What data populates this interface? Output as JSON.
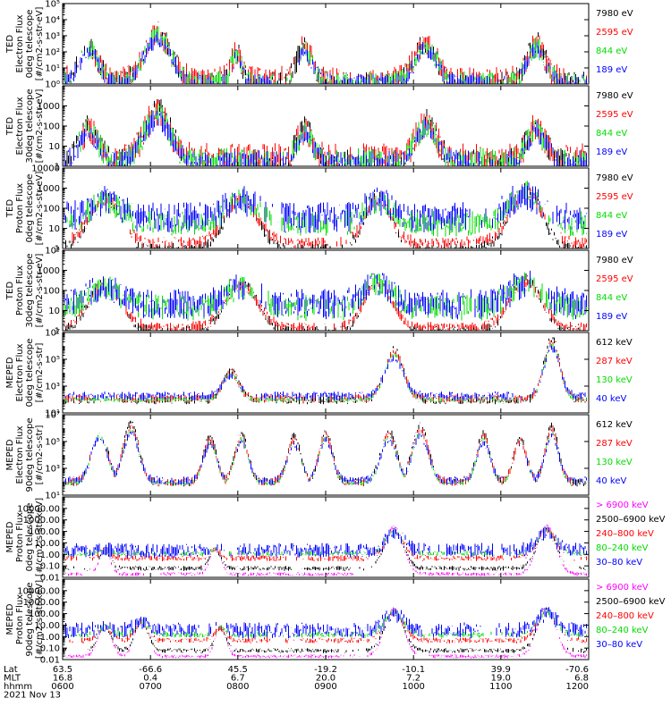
{
  "chart_data": [
    {
      "type": "line",
      "ylabel": [
        "TED",
        "Electron Flux",
        "0deg telescope",
        "[#/cm2-s-str-eV]"
      ],
      "yscale": "log",
      "ylim": [
        1,
        100000
      ],
      "yticks": [
        {
          "v": 1,
          "label": "10⁰"
        },
        {
          "v": 10,
          "label": "10¹"
        },
        {
          "v": 100,
          "label": "10²"
        },
        {
          "v": 1000,
          "label": "10³"
        },
        {
          "v": 10000,
          "label": "10⁴"
        },
        {
          "v": 100000,
          "label": "10⁵"
        }
      ],
      "series": [
        {
          "name": "7980 eV",
          "color": "#000000",
          "base": 0.1,
          "spread": 1.4
        },
        {
          "name": "2595 eV",
          "color": "#ff0000",
          "base": 0.3,
          "spread": 1.6
        },
        {
          "name": "844 eV",
          "color": "#00dd00",
          "base": 0.2,
          "spread": 1.2
        },
        {
          "name": "189 eV",
          "color": "#0000ff",
          "base": 0.15,
          "spread": 1.0
        }
      ],
      "passes": [
        {
          "c": 0.05,
          "w": 0.035,
          "peak": 2.5
        },
        {
          "c": 0.18,
          "w": 0.05,
          "peak": 3.4
        },
        {
          "c": 0.33,
          "w": 0.02,
          "peak": 2.0
        },
        {
          "c": 0.46,
          "w": 0.03,
          "peak": 2.4
        },
        {
          "c": 0.69,
          "w": 0.04,
          "peak": 2.7
        },
        {
          "c": 0.9,
          "w": 0.035,
          "peak": 2.6
        }
      ]
    },
    {
      "type": "line",
      "ylabel": [
        "TED",
        "Electron Flux",
        "30deg telescope",
        "[#/cm2-s-str-eV]"
      ],
      "yscale": "log",
      "ylim": [
        1,
        10000
      ],
      "yticks": [
        {
          "v": 1,
          "label": "1"
        },
        {
          "v": 10,
          "label": "10"
        },
        {
          "v": 100,
          "label": "100"
        },
        {
          "v": 1000,
          "label": "1000"
        }
      ],
      "series": [
        {
          "name": "7980 eV",
          "color": "#000000",
          "base": 0.3,
          "spread": 1.2
        },
        {
          "name": "2595 eV",
          "color": "#ff0000",
          "base": 0.4,
          "spread": 1.5
        },
        {
          "name": "844 eV",
          "color": "#00dd00",
          "base": 0.3,
          "spread": 1.2
        },
        {
          "name": "189 eV",
          "color": "#0000ff",
          "base": 0.3,
          "spread": 1.0
        }
      ],
      "passes": [
        {
          "c": 0.05,
          "w": 0.035,
          "peak": 2.0
        },
        {
          "c": 0.18,
          "w": 0.05,
          "peak": 2.9
        },
        {
          "c": 0.46,
          "w": 0.03,
          "peak": 2.0
        },
        {
          "c": 0.69,
          "w": 0.04,
          "peak": 2.3
        },
        {
          "c": 0.9,
          "w": 0.035,
          "peak": 2.1
        }
      ]
    },
    {
      "type": "line",
      "ylabel": [
        "TED",
        "Proton Flux",
        "0deg telescope",
        "[#/cm2-s-str-eV]"
      ],
      "yscale": "log",
      "ylim": [
        1,
        10000
      ],
      "yticks": [
        {
          "v": 1,
          "label": "1"
        },
        {
          "v": 10,
          "label": "10"
        },
        {
          "v": 100,
          "label": "100"
        },
        {
          "v": 1000,
          "label": "1000"
        },
        {
          "v": 10000,
          "label": "10000"
        }
      ],
      "series": [
        {
          "name": "7980 eV",
          "color": "#000000",
          "base": 0.0,
          "spread": 0.6
        },
        {
          "name": "2595 eV",
          "color": "#ff0000",
          "base": 0.3,
          "spread": 0.6
        },
        {
          "name": "844 eV",
          "color": "#00dd00",
          "base": 1.3,
          "spread": 1.2
        },
        {
          "name": "189 eV",
          "color": "#0000ff",
          "base": 1.6,
          "spread": 1.4
        }
      ],
      "passes": [
        {
          "c": 0.08,
          "w": 0.06,
          "peak": 2.6
        },
        {
          "c": 0.34,
          "w": 0.06,
          "peak": 2.6
        },
        {
          "c": 0.6,
          "w": 0.05,
          "peak": 2.6
        },
        {
          "c": 0.88,
          "w": 0.06,
          "peak": 3.0
        }
      ]
    },
    {
      "type": "line",
      "ylabel": [
        "TED",
        "Proton Flux",
        "30deg telescope",
        "[#/cm2-s-str-eV]"
      ],
      "yscale": "log",
      "ylim": [
        1,
        10000
      ],
      "yticks": [
        {
          "v": 1,
          "label": "1"
        },
        {
          "v": 10,
          "label": "10"
        },
        {
          "v": 100,
          "label": "100"
        },
        {
          "v": 1000,
          "label": "1000"
        },
        {
          "v": 10000,
          "label": "10⁴"
        }
      ],
      "series": [
        {
          "name": "7980 eV",
          "color": "#000000",
          "base": 0.0,
          "spread": 0.5
        },
        {
          "name": "2595 eV",
          "color": "#ff0000",
          "base": 0.2,
          "spread": 0.5
        },
        {
          "name": "844 eV",
          "color": "#00dd00",
          "base": 1.2,
          "spread": 1.2
        },
        {
          "name": "189 eV",
          "color": "#0000ff",
          "base": 1.4,
          "spread": 1.4
        }
      ],
      "passes": [
        {
          "c": 0.08,
          "w": 0.06,
          "peak": 2.4
        },
        {
          "c": 0.34,
          "w": 0.06,
          "peak": 2.4
        },
        {
          "c": 0.6,
          "w": 0.05,
          "peak": 2.6
        },
        {
          "c": 0.88,
          "w": 0.06,
          "peak": 2.6
        }
      ]
    },
    {
      "type": "line",
      "ylabel": [
        "MEPED",
        "Electron Flux",
        "0deg telescope",
        "[#/cm2-s-str]"
      ],
      "yscale": "log",
      "ylim": [
        10,
        10000000
      ],
      "yticks": [
        {
          "v": 10,
          "label": "10¹"
        },
        {
          "v": 1000,
          "label": "10³"
        },
        {
          "v": 100000,
          "label": "10⁵"
        },
        {
          "v": 10000000,
          "label": "10⁷"
        }
      ],
      "series": [
        {
          "name": "612 keV",
          "color": "#000000",
          "base": 2.0,
          "spread": 0.6
        },
        {
          "name": "287 keV",
          "color": "#ff0000",
          "base": 2.1,
          "spread": 0.6
        },
        {
          "name": "130 keV",
          "color": "#00dd00",
          "base": 2.0,
          "spread": 0.3
        },
        {
          "name": "40 keV",
          "color": "#0000ff",
          "base": 2.3,
          "spread": 0.6
        }
      ],
      "passes": [
        {
          "c": 0.32,
          "w": 0.03,
          "peak": 4.2
        },
        {
          "c": 0.63,
          "w": 0.035,
          "peak": 5.8
        },
        {
          "c": 0.93,
          "w": 0.03,
          "peak": 6.6
        }
      ]
    },
    {
      "type": "line",
      "ylabel": [
        "MEPED",
        "Electron Flux",
        "90deg telescope",
        "[#/cm2-s-str]"
      ],
      "yscale": "log",
      "ylim": [
        10,
        10000000
      ],
      "yticks": [
        {
          "v": 10,
          "label": "10¹"
        },
        {
          "v": 1000,
          "label": "10³"
        },
        {
          "v": 100000,
          "label": "10⁵"
        },
        {
          "v": 10000000,
          "label": "10⁷"
        }
      ],
      "series": [
        {
          "name": "612 keV",
          "color": "#000000",
          "base": 2.0,
          "spread": 0.6
        },
        {
          "name": "287 keV",
          "color": "#ff0000",
          "base": 2.0,
          "spread": 0.6
        },
        {
          "name": "130 keV",
          "color": "#00dd00",
          "base": 1.9,
          "spread": 0.3
        },
        {
          "name": "40 keV",
          "color": "#0000ff",
          "base": 2.1,
          "spread": 0.6
        }
      ],
      "passes": [
        {
          "c": 0.07,
          "w": 0.03,
          "peak": 6.0
        },
        {
          "c": 0.13,
          "w": 0.03,
          "peak": 6.4
        },
        {
          "c": 0.28,
          "w": 0.025,
          "peak": 5.3
        },
        {
          "c": 0.34,
          "w": 0.025,
          "peak": 5.6
        },
        {
          "c": 0.44,
          "w": 0.025,
          "peak": 5.4
        },
        {
          "c": 0.5,
          "w": 0.025,
          "peak": 5.8
        },
        {
          "c": 0.62,
          "w": 0.03,
          "peak": 5.8
        },
        {
          "c": 0.68,
          "w": 0.03,
          "peak": 6.2
        },
        {
          "c": 0.8,
          "w": 0.025,
          "peak": 5.6
        },
        {
          "c": 0.87,
          "w": 0.025,
          "peak": 5.2
        },
        {
          "c": 0.93,
          "w": 0.025,
          "peak": 6.2
        }
      ]
    },
    {
      "type": "line",
      "ylabel": [
        "MEPED",
        "Proton Flux",
        "0deg telescope",
        "[#/cm2-s-str-keV]"
      ],
      "yscale": "log",
      "ylim": [
        0.01,
        100000
      ],
      "yticks": [
        {
          "v": 0.01,
          "label": "0.01"
        },
        {
          "v": 0.1,
          "label": "0.10"
        },
        {
          "v": 1,
          "label": "1.00"
        },
        {
          "v": 10,
          "label": "10.00"
        },
        {
          "v": 100,
          "label": "100.00"
        },
        {
          "v": 1000,
          "label": "1000.00"
        },
        {
          "v": 10000,
          "label": "10000.00"
        }
      ],
      "series": [
        {
          "name": "> 6900 keV",
          "color": "#ff00ff",
          "base": -1.7,
          "spread": 0.3
        },
        {
          "name": "2500–6900 keV",
          "color": "#000000",
          "base": -1.2,
          "spread": 0.4
        },
        {
          "name": "240–800 keV",
          "color": "#ff0000",
          "base": -0.3,
          "spread": 0.5
        },
        {
          "name": "80–240 keV",
          "color": "#00dd00",
          "base": 0.1,
          "spread": 0.4
        },
        {
          "name": "30–80 keV",
          "color": "#0000ff",
          "base": 0.4,
          "spread": 1.2
        }
      ],
      "passes": [
        {
          "c": 0.08,
          "w": 0.02,
          "peak": 0.5
        },
        {
          "c": 0.29,
          "w": 0.02,
          "peak": 0.6
        },
        {
          "c": 0.63,
          "w": 0.035,
          "peak": 2.4
        },
        {
          "c": 0.92,
          "w": 0.035,
          "peak": 2.5
        }
      ]
    },
    {
      "type": "line",
      "ylabel": [
        "MEPED",
        "Proton Flux",
        "90deg telescope",
        "[#/cm2-s-str-keV]"
      ],
      "yscale": "log",
      "ylim": [
        0.01,
        100000
      ],
      "yticks": [
        {
          "v": 0.01,
          "label": "0.01"
        },
        {
          "v": 0.1,
          "label": "0.10"
        },
        {
          "v": 1,
          "label": "1.00"
        },
        {
          "v": 10,
          "label": "10.00"
        },
        {
          "v": 100,
          "label": "100.00"
        },
        {
          "v": 1000,
          "label": "1000.00"
        },
        {
          "v": 10000,
          "label": "10000.00"
        }
      ],
      "series": [
        {
          "name": "> 6900 keV",
          "color": "#ff00ff",
          "base": -1.7,
          "spread": 0.3
        },
        {
          "name": "2500–6900 keV",
          "color": "#000000",
          "base": -1.2,
          "spread": 0.4
        },
        {
          "name": "240–800 keV",
          "color": "#ff0000",
          "base": -0.3,
          "spread": 0.5
        },
        {
          "name": "80–240 keV",
          "color": "#00dd00",
          "base": 0.2,
          "spread": 0.5
        },
        {
          "name": "30–80 keV",
          "color": "#0000ff",
          "base": 0.6,
          "spread": 1.3
        }
      ],
      "passes": [
        {
          "c": 0.08,
          "w": 0.025,
          "peak": 1.0
        },
        {
          "c": 0.15,
          "w": 0.025,
          "peak": 1.5
        },
        {
          "c": 0.3,
          "w": 0.02,
          "peak": 0.9
        },
        {
          "c": 0.63,
          "w": 0.035,
          "peak": 2.5
        },
        {
          "c": 0.92,
          "w": 0.035,
          "peak": 2.5
        }
      ]
    }
  ],
  "footer": {
    "row_labels": [
      "Lat",
      "MLT",
      "hhmm"
    ],
    "date": "2021 Nov 13",
    "ticks": [
      {
        "frac": 0.0,
        "lat": "63.5",
        "mlt": "16.8",
        "hhmm": "0600"
      },
      {
        "frac": 0.167,
        "lat": "-66.6",
        "mlt": "0.4",
        "hhmm": "0700"
      },
      {
        "frac": 0.333,
        "lat": "45.5",
        "mlt": "6.7",
        "hhmm": "0800"
      },
      {
        "frac": 0.5,
        "lat": "-19.2",
        "mlt": "20.0",
        "hhmm": "0900"
      },
      {
        "frac": 0.667,
        "lat": "-10.1",
        "mlt": "7.2",
        "hhmm": "1000"
      },
      {
        "frac": 0.833,
        "lat": "39.9",
        "mlt": "19.0",
        "hhmm": "1100"
      },
      {
        "frac": 1.0,
        "lat": "-70.6",
        "mlt": "6.8",
        "hhmm": "1200"
      }
    ]
  }
}
